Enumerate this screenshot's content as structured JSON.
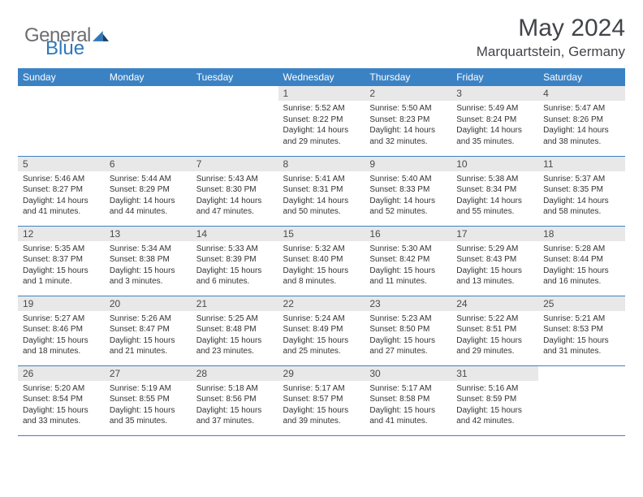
{
  "brand": {
    "part1": "General",
    "part2": "Blue"
  },
  "title": "May 2024",
  "location": "Marquartstein, Germany",
  "colors": {
    "header_bg": "#3b82c4",
    "header_text": "#ffffff",
    "daynum_bg": "#e8e8e8",
    "text": "#333333",
    "title_color": "#424448",
    "border": "#3b82c4"
  },
  "typography": {
    "title_fontsize": 30,
    "location_fontsize": 17,
    "header_fontsize": 12,
    "daynum_fontsize": 12,
    "body_fontsize": 10
  },
  "weekdays": [
    "Sunday",
    "Monday",
    "Tuesday",
    "Wednesday",
    "Thursday",
    "Friday",
    "Saturday"
  ],
  "weeks": [
    [
      null,
      null,
      null,
      {
        "n": "1",
        "sr": "Sunrise: 5:52 AM",
        "ss": "Sunset: 8:22 PM",
        "dl": "Daylight: 14 hours and 29 minutes."
      },
      {
        "n": "2",
        "sr": "Sunrise: 5:50 AM",
        "ss": "Sunset: 8:23 PM",
        "dl": "Daylight: 14 hours and 32 minutes."
      },
      {
        "n": "3",
        "sr": "Sunrise: 5:49 AM",
        "ss": "Sunset: 8:24 PM",
        "dl": "Daylight: 14 hours and 35 minutes."
      },
      {
        "n": "4",
        "sr": "Sunrise: 5:47 AM",
        "ss": "Sunset: 8:26 PM",
        "dl": "Daylight: 14 hours and 38 minutes."
      }
    ],
    [
      {
        "n": "5",
        "sr": "Sunrise: 5:46 AM",
        "ss": "Sunset: 8:27 PM",
        "dl": "Daylight: 14 hours and 41 minutes."
      },
      {
        "n": "6",
        "sr": "Sunrise: 5:44 AM",
        "ss": "Sunset: 8:29 PM",
        "dl": "Daylight: 14 hours and 44 minutes."
      },
      {
        "n": "7",
        "sr": "Sunrise: 5:43 AM",
        "ss": "Sunset: 8:30 PM",
        "dl": "Daylight: 14 hours and 47 minutes."
      },
      {
        "n": "8",
        "sr": "Sunrise: 5:41 AM",
        "ss": "Sunset: 8:31 PM",
        "dl": "Daylight: 14 hours and 50 minutes."
      },
      {
        "n": "9",
        "sr": "Sunrise: 5:40 AM",
        "ss": "Sunset: 8:33 PM",
        "dl": "Daylight: 14 hours and 52 minutes."
      },
      {
        "n": "10",
        "sr": "Sunrise: 5:38 AM",
        "ss": "Sunset: 8:34 PM",
        "dl": "Daylight: 14 hours and 55 minutes."
      },
      {
        "n": "11",
        "sr": "Sunrise: 5:37 AM",
        "ss": "Sunset: 8:35 PM",
        "dl": "Daylight: 14 hours and 58 minutes."
      }
    ],
    [
      {
        "n": "12",
        "sr": "Sunrise: 5:35 AM",
        "ss": "Sunset: 8:37 PM",
        "dl": "Daylight: 15 hours and 1 minute."
      },
      {
        "n": "13",
        "sr": "Sunrise: 5:34 AM",
        "ss": "Sunset: 8:38 PM",
        "dl": "Daylight: 15 hours and 3 minutes."
      },
      {
        "n": "14",
        "sr": "Sunrise: 5:33 AM",
        "ss": "Sunset: 8:39 PM",
        "dl": "Daylight: 15 hours and 6 minutes."
      },
      {
        "n": "15",
        "sr": "Sunrise: 5:32 AM",
        "ss": "Sunset: 8:40 PM",
        "dl": "Daylight: 15 hours and 8 minutes."
      },
      {
        "n": "16",
        "sr": "Sunrise: 5:30 AM",
        "ss": "Sunset: 8:42 PM",
        "dl": "Daylight: 15 hours and 11 minutes."
      },
      {
        "n": "17",
        "sr": "Sunrise: 5:29 AM",
        "ss": "Sunset: 8:43 PM",
        "dl": "Daylight: 15 hours and 13 minutes."
      },
      {
        "n": "18",
        "sr": "Sunrise: 5:28 AM",
        "ss": "Sunset: 8:44 PM",
        "dl": "Daylight: 15 hours and 16 minutes."
      }
    ],
    [
      {
        "n": "19",
        "sr": "Sunrise: 5:27 AM",
        "ss": "Sunset: 8:46 PM",
        "dl": "Daylight: 15 hours and 18 minutes."
      },
      {
        "n": "20",
        "sr": "Sunrise: 5:26 AM",
        "ss": "Sunset: 8:47 PM",
        "dl": "Daylight: 15 hours and 21 minutes."
      },
      {
        "n": "21",
        "sr": "Sunrise: 5:25 AM",
        "ss": "Sunset: 8:48 PM",
        "dl": "Daylight: 15 hours and 23 minutes."
      },
      {
        "n": "22",
        "sr": "Sunrise: 5:24 AM",
        "ss": "Sunset: 8:49 PM",
        "dl": "Daylight: 15 hours and 25 minutes."
      },
      {
        "n": "23",
        "sr": "Sunrise: 5:23 AM",
        "ss": "Sunset: 8:50 PM",
        "dl": "Daylight: 15 hours and 27 minutes."
      },
      {
        "n": "24",
        "sr": "Sunrise: 5:22 AM",
        "ss": "Sunset: 8:51 PM",
        "dl": "Daylight: 15 hours and 29 minutes."
      },
      {
        "n": "25",
        "sr": "Sunrise: 5:21 AM",
        "ss": "Sunset: 8:53 PM",
        "dl": "Daylight: 15 hours and 31 minutes."
      }
    ],
    [
      {
        "n": "26",
        "sr": "Sunrise: 5:20 AM",
        "ss": "Sunset: 8:54 PM",
        "dl": "Daylight: 15 hours and 33 minutes."
      },
      {
        "n": "27",
        "sr": "Sunrise: 5:19 AM",
        "ss": "Sunset: 8:55 PM",
        "dl": "Daylight: 15 hours and 35 minutes."
      },
      {
        "n": "28",
        "sr": "Sunrise: 5:18 AM",
        "ss": "Sunset: 8:56 PM",
        "dl": "Daylight: 15 hours and 37 minutes."
      },
      {
        "n": "29",
        "sr": "Sunrise: 5:17 AM",
        "ss": "Sunset: 8:57 PM",
        "dl": "Daylight: 15 hours and 39 minutes."
      },
      {
        "n": "30",
        "sr": "Sunrise: 5:17 AM",
        "ss": "Sunset: 8:58 PM",
        "dl": "Daylight: 15 hours and 41 minutes."
      },
      {
        "n": "31",
        "sr": "Sunrise: 5:16 AM",
        "ss": "Sunset: 8:59 PM",
        "dl": "Daylight: 15 hours and 42 minutes."
      },
      null
    ]
  ]
}
